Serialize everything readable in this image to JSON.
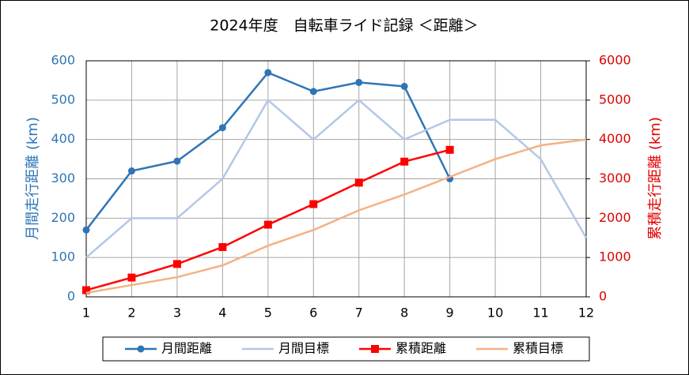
{
  "chart_data": {
    "type": "line",
    "title": "2024年度　自転車ライド記録 ＜距離＞",
    "y_label": "月間走行距離 (km)",
    "y2_label": "累積走行距離 (km)",
    "x": [
      1,
      2,
      3,
      4,
      5,
      6,
      7,
      8,
      9,
      10,
      11,
      12
    ],
    "xlim": [
      1,
      12
    ],
    "xticks": [
      1,
      2,
      3,
      4,
      5,
      6,
      7,
      8,
      9,
      10,
      11,
      12
    ],
    "ylim": [
      0,
      600
    ],
    "yticks": [
      0,
      100,
      200,
      300,
      400,
      500,
      600
    ],
    "y2lim": [
      0,
      6000
    ],
    "y2ticks": [
      0,
      1000,
      2000,
      3000,
      4000,
      5000,
      6000
    ],
    "grid": true,
    "legend": "bottom",
    "series": [
      {
        "name": "月間距離",
        "color": "#2e75b6",
        "marker": "circle",
        "values": [
          170,
          320,
          345,
          430,
          570,
          522,
          545,
          535,
          300,
          null,
          null,
          null
        ]
      },
      {
        "name": "月間目標",
        "color": "#b4c7e7",
        "values": [
          100,
          200,
          200,
          300,
          500,
          400,
          500,
          400,
          450,
          450,
          350,
          150
        ]
      },
      {
        "name": "累積距離",
        "color": "#ff0000",
        "marker": "square",
        "axis": "y2",
        "values": [
          170,
          490,
          835,
          1265,
          1835,
          2357,
          2902,
          3437,
          3737,
          null,
          null,
          null
        ]
      },
      {
        "name": "累積目標",
        "color": "#f4b183",
        "axis": "y2",
        "values": [
          100,
          300,
          500,
          800,
          1300,
          1700,
          2200,
          2600,
          3050,
          3500,
          3850,
          4000
        ]
      }
    ]
  }
}
